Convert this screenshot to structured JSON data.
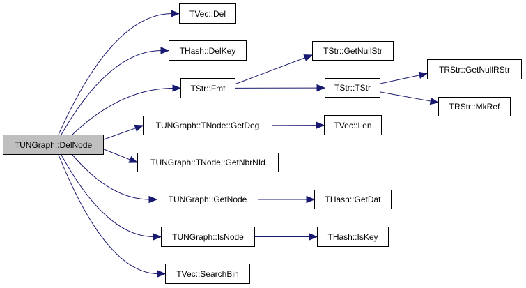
{
  "colors": {
    "edge": "#191970",
    "root_fill": "#bfbfbf",
    "node_fill": "#ffffff",
    "border": "#000000"
  },
  "nodes": [
    {
      "id": "delnode",
      "label": "TUNGraph::DelNode",
      "root": true
    },
    {
      "id": "vecdel",
      "label": "TVec::Del"
    },
    {
      "id": "hashdelkey",
      "label": "THash::DelKey"
    },
    {
      "id": "strfmt",
      "label": "TStr::Fmt"
    },
    {
      "id": "getdeg",
      "label": "TUNGraph::TNode::GetDeg"
    },
    {
      "id": "getnbrnid",
      "label": "TUNGraph::TNode::GetNbrNId"
    },
    {
      "id": "getnode",
      "label": "TUNGraph::GetNode"
    },
    {
      "id": "isnode",
      "label": "TUNGraph::IsNode"
    },
    {
      "id": "searchbin",
      "label": "TVec::SearchBin"
    },
    {
      "id": "getnullstr",
      "label": "TStr::GetNullStr"
    },
    {
      "id": "tstr",
      "label": "TStr::TStr"
    },
    {
      "id": "getnullrstr",
      "label": "TRStr::GetNullRStr"
    },
    {
      "id": "mkref",
      "label": "TRStr::MkRef"
    },
    {
      "id": "veclen",
      "label": "TVec::Len"
    },
    {
      "id": "getdat",
      "label": "THash::GetDat"
    },
    {
      "id": "iskey",
      "label": "THash::IsKey"
    }
  ],
  "edges": [
    [
      "delnode",
      "vecdel"
    ],
    [
      "delnode",
      "hashdelkey"
    ],
    [
      "delnode",
      "strfmt"
    ],
    [
      "delnode",
      "getdeg"
    ],
    [
      "delnode",
      "getnbrnid"
    ],
    [
      "delnode",
      "getnode"
    ],
    [
      "delnode",
      "isnode"
    ],
    [
      "delnode",
      "searchbin"
    ],
    [
      "strfmt",
      "getnullstr"
    ],
    [
      "strfmt",
      "tstr"
    ],
    [
      "tstr",
      "getnullrstr"
    ],
    [
      "tstr",
      "mkref"
    ],
    [
      "getdeg",
      "veclen"
    ],
    [
      "getnode",
      "getdat"
    ],
    [
      "isnode",
      "iskey"
    ]
  ]
}
